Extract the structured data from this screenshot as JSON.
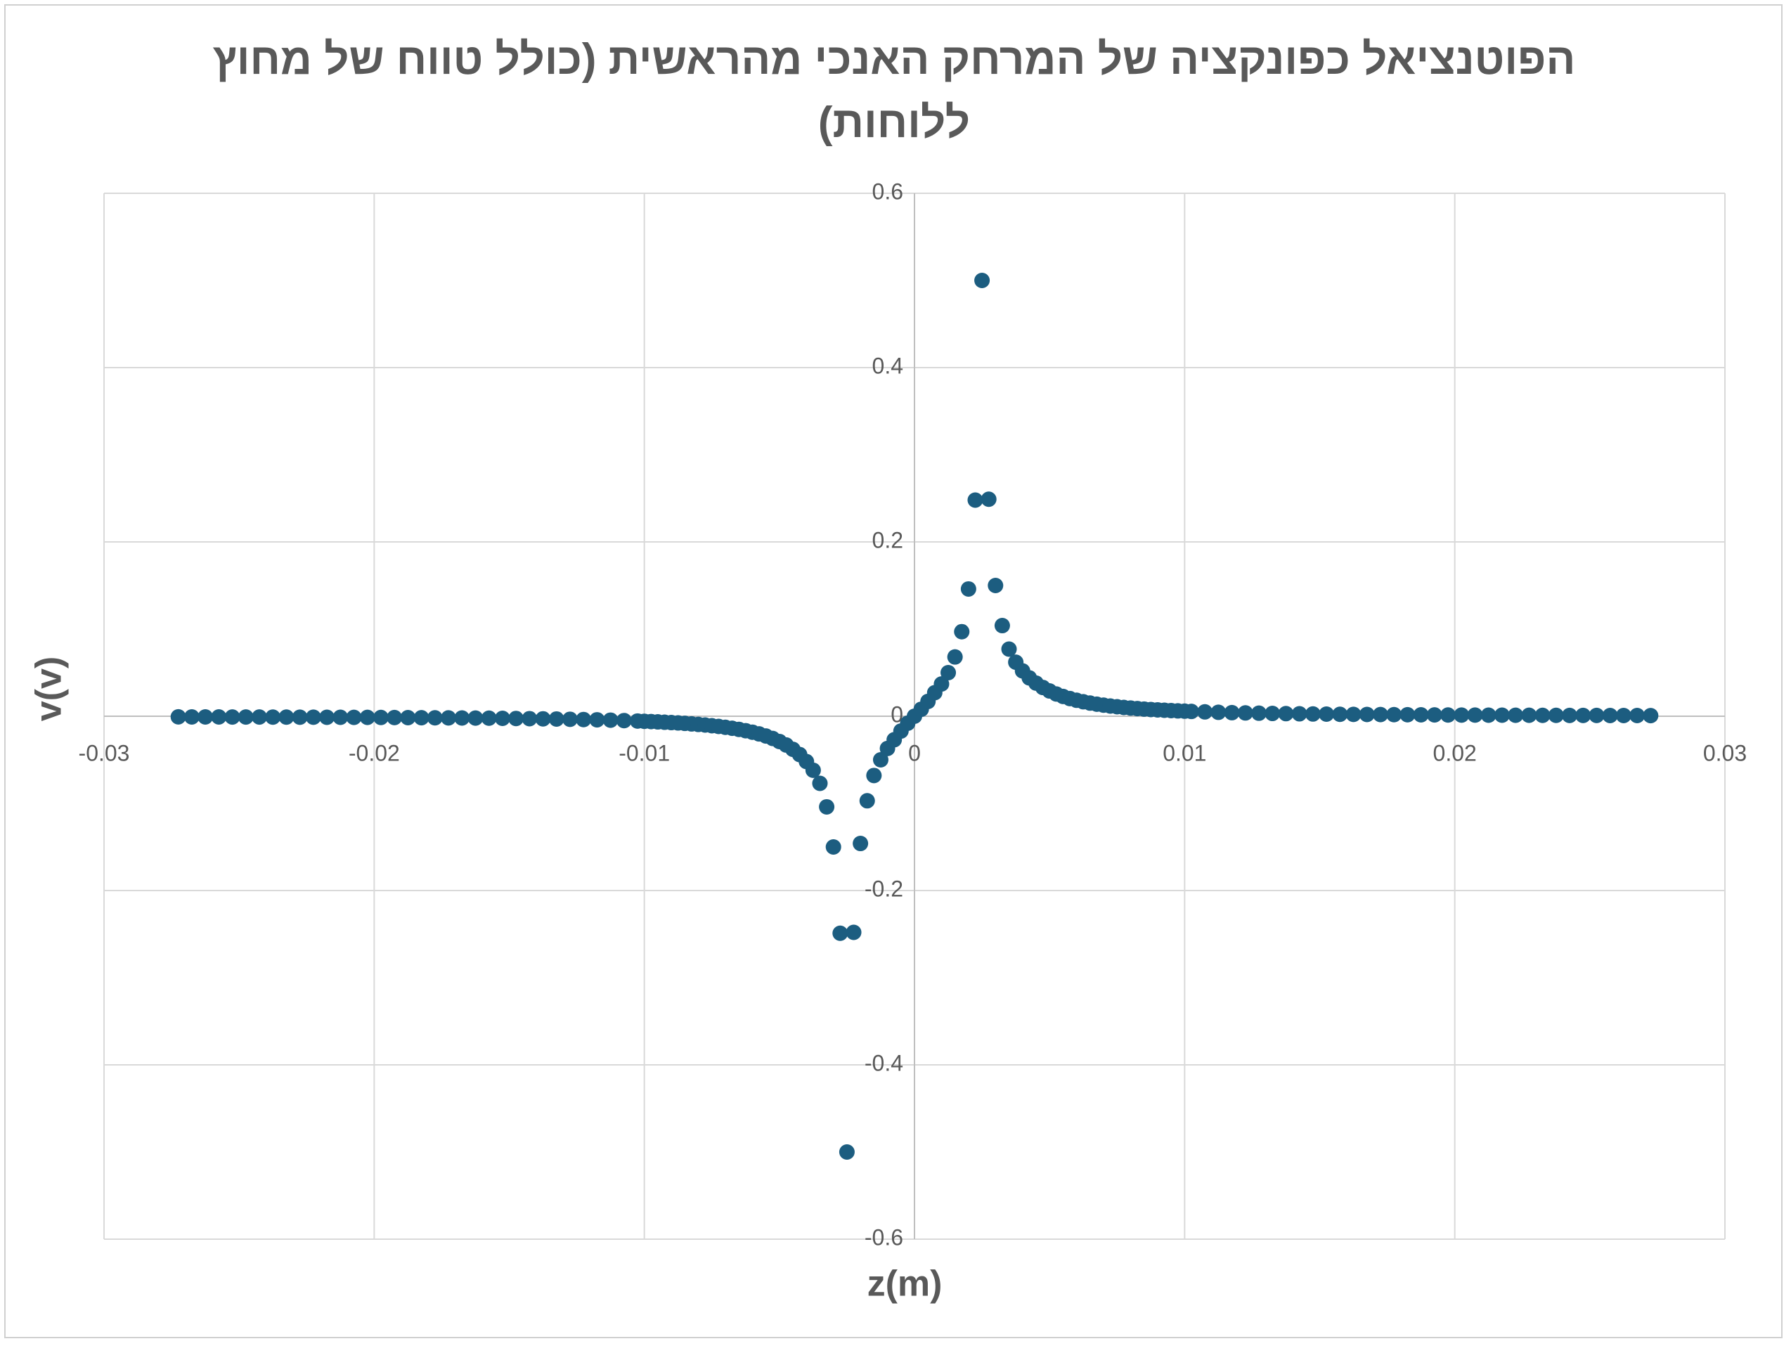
{
  "chart_data": {
    "type": "scatter",
    "title": "הפוטנציאל כפונקציה של המרחק האנכי מהראשית (כולל טווח של מחוץ ללוחות)",
    "x_label": "z(m)",
    "y_label": "v(v)",
    "color": "#1c5d80",
    "grid": true,
    "xlim": [
      -0.03,
      0.03
    ],
    "ylim": [
      -0.6,
      0.6
    ],
    "xticks": [
      -0.03,
      -0.02,
      -0.01,
      0,
      0.01,
      0.02,
      0.03
    ],
    "yticks": [
      -0.6,
      -0.4,
      -0.2,
      0,
      0.2,
      0.4,
      0.6
    ],
    "x": [
      -0.02725,
      -0.02675,
      -0.02625,
      -0.02575,
      -0.02525,
      -0.02475,
      -0.02425,
      -0.02375,
      -0.02325,
      -0.02275,
      -0.02225,
      -0.02175,
      -0.02125,
      -0.02075,
      -0.02025,
      -0.01975,
      -0.01925,
      -0.01875,
      -0.01825,
      -0.01775,
      -0.01725,
      -0.01675,
      -0.01625,
      -0.01575,
      -0.01525,
      -0.01475,
      -0.01425,
      -0.01375,
      -0.01325,
      -0.01275,
      -0.01225,
      -0.01175,
      -0.01125,
      -0.01075,
      -0.01025,
      -0.01,
      -0.00975,
      -0.0095,
      -0.00925,
      -0.009,
      -0.00875,
      -0.0085,
      -0.00825,
      -0.008,
      -0.00775,
      -0.0075,
      -0.00725,
      -0.007,
      -0.00675,
      -0.0065,
      -0.00625,
      -0.006,
      -0.00575,
      -0.0055,
      -0.00525,
      -0.005,
      -0.00475,
      -0.0045,
      -0.00425,
      -0.004,
      -0.00375,
      -0.0035,
      -0.00325,
      -0.003,
      -0.00275,
      -0.0025,
      -0.00225,
      -0.002,
      -0.00175,
      -0.0015,
      -0.00125,
      -0.001,
      -0.00075,
      -0.0005,
      -0.00025,
      0,
      0.00025,
      0.0005,
      0.00075,
      0.001,
      0.00125,
      0.0015,
      0.00175,
      0.002,
      0.00225,
      0.0025,
      0.00275,
      0.003,
      0.00325,
      0.0035,
      0.00375,
      0.004,
      0.00425,
      0.0045,
      0.00475,
      0.005,
      0.00525,
      0.0055,
      0.00575,
      0.006,
      0.00625,
      0.0065,
      0.00675,
      0.007,
      0.00725,
      0.0075,
      0.00775,
      0.008,
      0.00825,
      0.0085,
      0.00875,
      0.009,
      0.00925,
      0.0095,
      0.00975,
      0.01,
      0.01025,
      0.01075,
      0.01125,
      0.01175,
      0.01225,
      0.01275,
      0.01325,
      0.01375,
      0.01425,
      0.01475,
      0.01525,
      0.01575,
      0.01625,
      0.01675,
      0.01725,
      0.01775,
      0.01825,
      0.01875,
      0.01925,
      0.01975,
      0.02025,
      0.02075,
      0.02125,
      0.02175,
      0.02225,
      0.02275,
      0.02325,
      0.02375,
      0.02425,
      0.02475,
      0.02525,
      0.02575,
      0.02625,
      0.02675,
      0.02725
    ],
    "values": [
      -0.0007,
      -0.0008,
      -0.0008,
      -0.0008,
      -0.0009,
      -0.0009,
      -0.0009,
      -0.001,
      -0.001,
      -0.0011,
      -0.0011,
      -0.0012,
      -0.0012,
      -0.0013,
      -0.0013,
      -0.0014,
      -0.0015,
      -0.0016,
      -0.0017,
      -0.0018,
      -0.0019,
      -0.002,
      -0.0021,
      -0.0022,
      -0.0024,
      -0.0026,
      -0.0028,
      -0.003,
      -0.0032,
      -0.0035,
      -0.0038,
      -0.0041,
      -0.0045,
      -0.005,
      -0.0055,
      -0.0058,
      -0.0061,
      -0.0065,
      -0.0069,
      -0.0073,
      -0.0077,
      -0.0082,
      -0.0088,
      -0.0094,
      -0.0101,
      -0.0109,
      -0.0117,
      -0.0127,
      -0.0138,
      -0.0151,
      -0.0166,
      -0.0183,
      -0.0203,
      -0.0227,
      -0.0255,
      -0.029,
      -0.033,
      -0.038,
      -0.044,
      -0.052,
      -0.062,
      -0.077,
      -0.104,
      -0.15,
      -0.249,
      -0.5,
      -0.248,
      -0.146,
      -0.097,
      -0.068,
      -0.05,
      -0.037,
      -0.027,
      -0.017,
      -0.008,
      0,
      0.008,
      0.017,
      0.027,
      0.037,
      0.05,
      0.068,
      0.097,
      0.146,
      0.248,
      0.5,
      0.249,
      0.15,
      0.104,
      0.077,
      0.062,
      0.052,
      0.044,
      0.038,
      0.033,
      0.029,
      0.0255,
      0.0227,
      0.0203,
      0.0183,
      0.0166,
      0.0151,
      0.0138,
      0.0127,
      0.0117,
      0.0109,
      0.0101,
      0.0094,
      0.0088,
      0.0082,
      0.0077,
      0.0073,
      0.0069,
      0.0065,
      0.0061,
      0.0058,
      0.0055,
      0.005,
      0.0045,
      0.0041,
      0.0038,
      0.0035,
      0.0032,
      0.003,
      0.0028,
      0.0026,
      0.0024,
      0.0022,
      0.0021,
      0.002,
      0.0019,
      0.0018,
      0.0017,
      0.0016,
      0.0015,
      0.0014,
      0.0013,
      0.0013,
      0.0012,
      0.0012,
      0.0011,
      0.0011,
      0.001,
      0.001,
      0.0009,
      0.0009,
      0.0009,
      0.0008,
      0.0008,
      0.0008,
      0.0007
    ]
  }
}
